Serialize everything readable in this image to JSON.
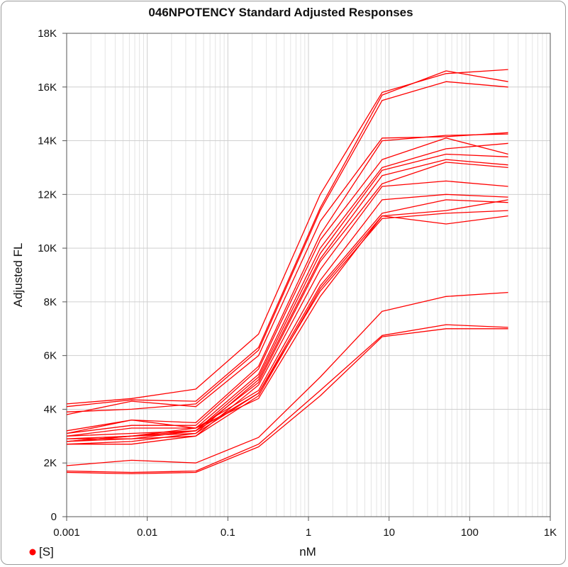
{
  "chart_data": {
    "type": "line",
    "title": "046NPOTENCY Standard Adjusted Responses",
    "xlabel": "nM",
    "ylabel": "Adjusted FL",
    "xscale": "log",
    "xlim": [
      0.001,
      1000
    ],
    "ylim": [
      0,
      18000
    ],
    "grid": true,
    "legend_position": "bottom-left",
    "legend": [
      {
        "marker": "circle",
        "label": "[S]"
      }
    ],
    "series_color": "#ff0000",
    "x_tick_labels": [
      "0.001",
      "0.01",
      "0.1",
      "1",
      "10",
      "100",
      "1K"
    ],
    "y_tick_labels": [
      "0",
      "2K",
      "4K",
      "6K",
      "8K",
      "10K",
      "12K",
      "14K",
      "16K",
      "18K"
    ],
    "x": [
      0.001,
      0.0064,
      0.04,
      0.24,
      1.4,
      8.2,
      51,
      300
    ],
    "series": [
      {
        "values": [
          4200,
          4400,
          4750,
          6800,
          12000,
          15800,
          16500,
          16650
        ]
      },
      {
        "values": [
          4100,
          4350,
          4300,
          6300,
          11500,
          15700,
          16600,
          16200
        ]
      },
      {
        "values": [
          3900,
          4000,
          4200,
          6200,
          11400,
          15500,
          16200,
          16000
        ]
      },
      {
        "values": [
          3800,
          4300,
          4100,
          6000,
          11000,
          14100,
          14150,
          14300
        ]
      },
      {
        "values": [
          3200,
          3600,
          3500,
          5600,
          10500,
          14000,
          14200,
          14250
        ]
      },
      {
        "values": [
          3100,
          3400,
          3400,
          5500,
          10300,
          13300,
          14100,
          13500
        ]
      },
      {
        "values": [
          3000,
          3300,
          3300,
          5300,
          10000,
          13000,
          13700,
          13900
        ]
      },
      {
        "values": [
          3000,
          3100,
          3200,
          5200,
          9800,
          12900,
          13500,
          13400
        ]
      },
      {
        "values": [
          2900,
          3000,
          3100,
          5100,
          9600,
          12700,
          13300,
          13100
        ]
      },
      {
        "values": [
          2900,
          2900,
          3200,
          5000,
          9500,
          12400,
          13200,
          13000
        ]
      },
      {
        "values": [
          2800,
          2900,
          3000,
          4900,
          9200,
          12300,
          12500,
          12300
        ]
      },
      {
        "values": [
          2800,
          3000,
          3300,
          4700,
          8800,
          11800,
          12000,
          11900
        ]
      },
      {
        "values": [
          2700,
          2800,
          3100,
          4600,
          8600,
          11300,
          11800,
          11700
        ]
      },
      {
        "values": [
          2700,
          2700,
          3000,
          4500,
          8500,
          11200,
          11400,
          11800
        ]
      },
      {
        "values": [
          2800,
          3000,
          3200,
          4600,
          8400,
          11100,
          11300,
          11400
        ]
      },
      {
        "values": [
          3100,
          3600,
          3300,
          4400,
          8200,
          11200,
          10900,
          11200
        ]
      },
      {
        "values": [
          1900,
          2100,
          2000,
          2950,
          5200,
          7650,
          8200,
          8350
        ]
      },
      {
        "values": [
          1700,
          1650,
          1700,
          2700,
          4700,
          6750,
          7150,
          7050
        ]
      },
      {
        "values": [
          1650,
          1600,
          1650,
          2600,
          4500,
          6700,
          7000,
          7000
        ]
      }
    ]
  }
}
